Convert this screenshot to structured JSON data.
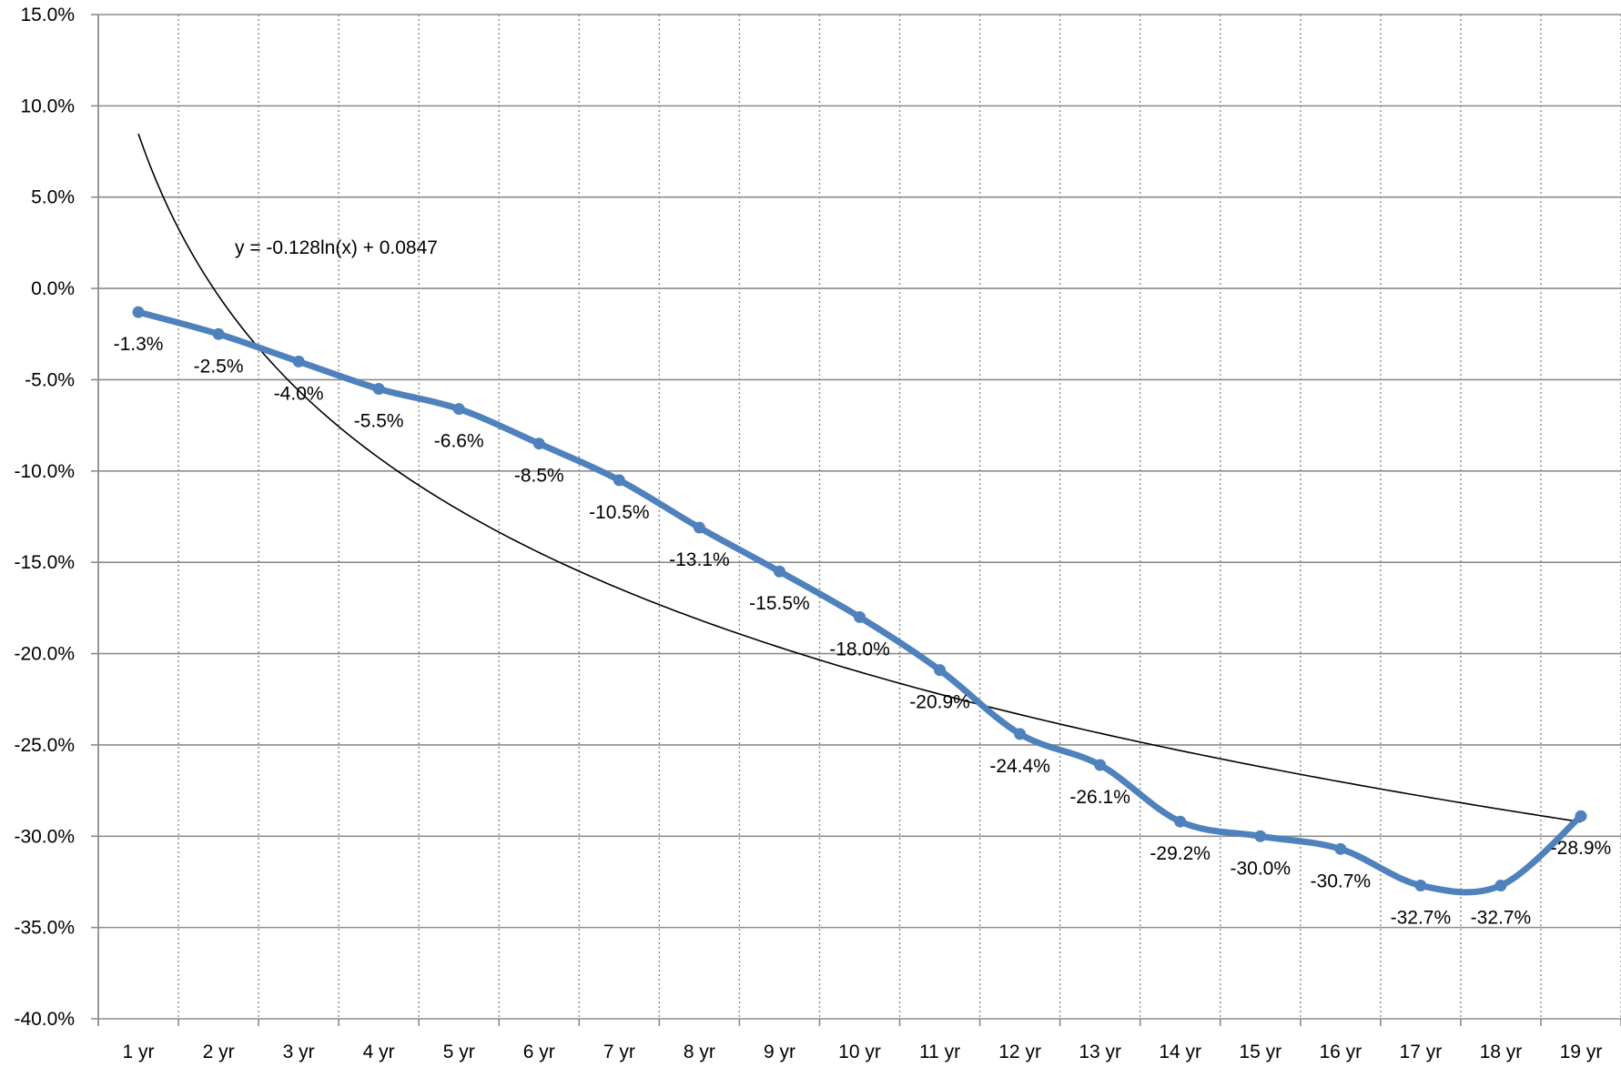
{
  "chart_data": {
    "type": "line",
    "categories": [
      "1 yr",
      "2 yr",
      "3 yr",
      "4 yr",
      "5 yr",
      "6 yr",
      "7 yr",
      "8 yr",
      "9 yr",
      "10 yr",
      "11 yr",
      "12 yr",
      "13 yr",
      "14 yr",
      "15 yr",
      "16 yr",
      "17 yr",
      "18 yr",
      "19 yr"
    ],
    "series": [
      {
        "values": [
          -1.3,
          -2.5,
          -4.0,
          -5.5,
          -6.6,
          -8.5,
          -10.5,
          -13.1,
          -15.5,
          -18.0,
          -20.9,
          -24.4,
          -26.1,
          -29.2,
          -30.0,
          -30.7,
          -32.7,
          -32.7,
          -28.9
        ],
        "data_labels": [
          "-1.3%",
          "-2.5%",
          "-4.0%",
          "-5.5%",
          "-6.6%",
          "-8.5%",
          "-10.5%",
          "-13.1%",
          "-15.5%",
          "-18.0%",
          "-20.9%",
          "-24.4%",
          "-26.1%",
          "-29.2%",
          "-30.0%",
          "-30.7%",
          "-32.7%",
          "-32.7%",
          "-28.9%"
        ],
        "color": "#4f81bd",
        "smooth": true,
        "markers": true
      }
    ],
    "trendline": {
      "type": "logarithmic",
      "equation": "y = -0.128ln(x) + 0.0847",
      "a": -0.128,
      "b": 0.0847,
      "color": "#000000"
    },
    "ylim": [
      -40,
      15
    ],
    "yticks": [
      15,
      10,
      5,
      0,
      -5,
      -10,
      -15,
      -20,
      -25,
      -30,
      -35,
      -40
    ],
    "ytick_labels": [
      "15.0%",
      "10.0%",
      "5.0%",
      "0.0%",
      "-5.0%",
      "-10.0%",
      "-15.0%",
      "-20.0%",
      "-25.0%",
      "-30.0%",
      "-35.0%",
      "-40.0%"
    ],
    "grid": {
      "horizontal": "solid",
      "vertical": "dotted"
    },
    "title": "",
    "xlabel": "",
    "ylabel": "",
    "legend": "none"
  }
}
